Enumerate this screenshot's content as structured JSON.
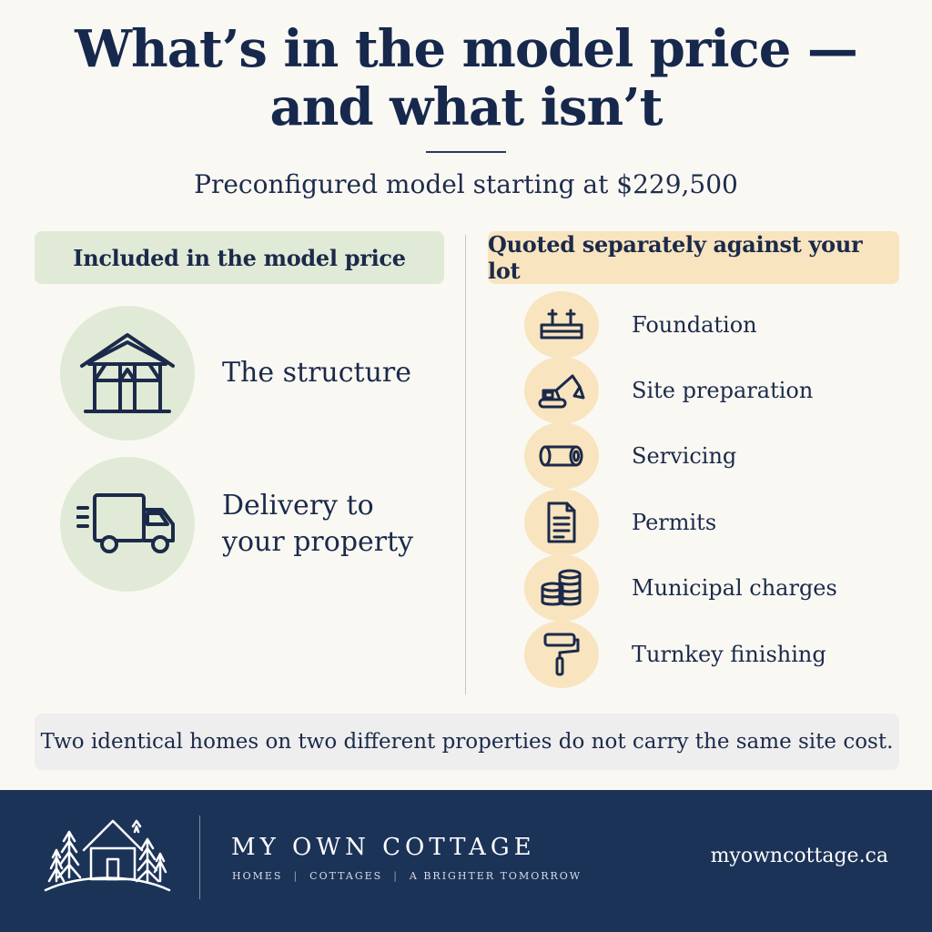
{
  "header": {
    "title_line1": "What’s in the model price —",
    "title_line2": "and what isn’t",
    "subtitle": "Preconfigured model starting at $229,500"
  },
  "included": {
    "heading": "Included in the model price",
    "items": [
      {
        "label": "The structure",
        "icon": "house-frame-icon"
      },
      {
        "label": "Delivery to your property",
        "icon": "delivery-truck-icon"
      }
    ]
  },
  "excluded": {
    "heading": "Quoted separately against your lot",
    "items": [
      {
        "label": "Foundation",
        "icon": "foundation-icon"
      },
      {
        "label": "Site preparation",
        "icon": "excavator-icon"
      },
      {
        "label": "Servicing",
        "icon": "pipe-icon"
      },
      {
        "label": "Permits",
        "icon": "document-icon"
      },
      {
        "label": "Municipal charges",
        "icon": "coins-icon"
      },
      {
        "label": "Turnkey finishing",
        "icon": "paint-roller-icon"
      }
    ]
  },
  "note": "Two identical homes on two different properties do not carry the same site cost.",
  "footer": {
    "brand": "MY OWN COTTAGE",
    "tagline": [
      "HOMES",
      "COTTAGES",
      "A BRIGHTER TOMORROW"
    ],
    "url": "myowncottage.ca"
  },
  "colors": {
    "navy": "#17284d",
    "included_green": "#e1ead6",
    "excluded_peach": "#f8e4bf",
    "footer_bg": "#1c3358",
    "background": "#faf8f3"
  }
}
